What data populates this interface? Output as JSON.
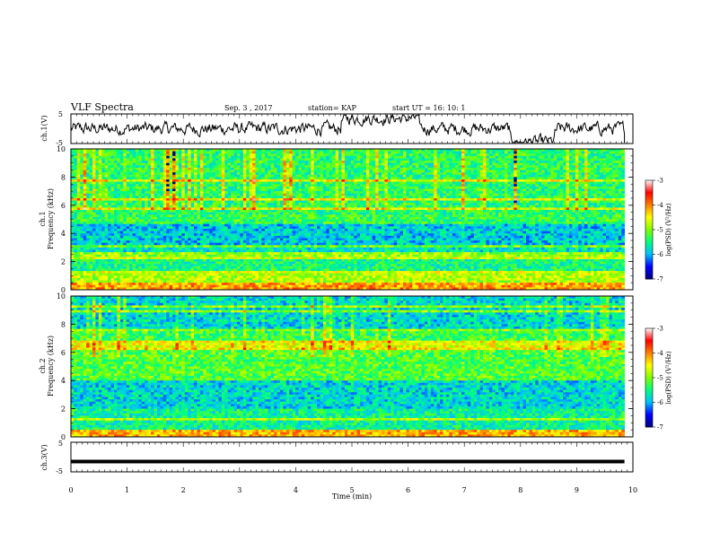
{
  "header": {
    "title": "VLF Spectra",
    "date": "Sep. 3  , 2017",
    "station": "station= KAP",
    "start": "start  UT =   16: 10: 1"
  },
  "chart_data": [
    {
      "type": "line",
      "ylabel": "ch.1(V)",
      "ylim": [
        -5,
        5
      ],
      "yticks": [
        "5",
        "-5"
      ],
      "xlim": [
        0,
        10
      ],
      "line_color": "#000000",
      "grid": false
    },
    {
      "type": "heatmap",
      "ylabel": "Frequency (kHz)",
      "channel_label": "ch.1",
      "ylim": [
        0,
        10
      ],
      "yticks": [
        "0",
        "2",
        "4",
        "6",
        "8",
        "10"
      ],
      "xlim": [
        0,
        10
      ],
      "data_extent_min": 9.85,
      "colorbar": {
        "label": "log(PSD) (V²/Hz)",
        "range": [
          -7,
          -3
        ],
        "ticks": [
          "-3",
          "-4",
          "-5",
          "-6",
          "-7"
        ],
        "colors": [
          "#00007f",
          "#0000ff",
          "#00bfff",
          "#00ff80",
          "#80ff00",
          "#ffff00",
          "#ff8000",
          "#ff0000",
          "#ffffff"
        ]
      }
    },
    {
      "type": "heatmap",
      "ylabel": "Frequency (kHz)",
      "channel_label": "ch.2",
      "ylim": [
        0,
        10
      ],
      "yticks": [
        "0",
        "2",
        "4",
        "6",
        "8",
        "10"
      ],
      "xlim": [
        0,
        10
      ],
      "data_extent_min": 9.85,
      "colorbar": {
        "label": "log(PSD) (V²/Hz)",
        "range": [
          -7,
          -3
        ],
        "ticks": [
          "-3",
          "-4",
          "-5",
          "-6",
          "-7"
        ],
        "colors": [
          "#00007f",
          "#0000ff",
          "#00bfff",
          "#00ff80",
          "#80ff00",
          "#ffff00",
          "#ff8000",
          "#ff0000",
          "#ffffff"
        ]
      }
    },
    {
      "type": "line",
      "ylabel": "ch.3(V)",
      "ylim": [
        -5,
        5
      ],
      "yticks": [
        "5",
        "-5"
      ],
      "xlim": [
        0,
        10
      ],
      "xlabel": "Time (min)",
      "xticks": [
        "0",
        "1",
        "2",
        "3",
        "4",
        "5",
        "6",
        "7",
        "8",
        "9",
        "10"
      ],
      "constant_value": -1.5,
      "line_color": "#000000"
    }
  ]
}
